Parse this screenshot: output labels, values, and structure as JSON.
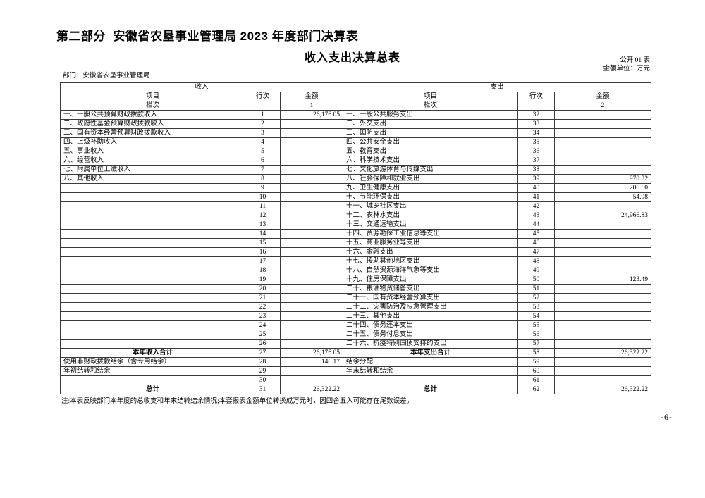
{
  "page": {
    "title": "第二部分  安徽省农垦事业管理局 2023 年度部门决算表",
    "subtitle": "收入支出决算总表",
    "table_code": "公开 01 表",
    "unit_label": "金额单位：万元",
    "dept_label": "部门：安徽省农垦事业管理局",
    "note": "注:本表反映部门本年度的总收支和年末结转结余情况;本套报表金额单位转换成万元时，因四舍五入可能存在尾数误差。",
    "page_number": "-6-",
    "ink_color": "#000000",
    "background_color": "#ffffff"
  },
  "table": {
    "income": {
      "section_title": "收入",
      "headers": {
        "item": "项目",
        "line": "行次",
        "amount": "金额"
      },
      "lanci": {
        "item": "栏次",
        "line": "",
        "amount": "1"
      },
      "rows": [
        {
          "item": "一、一般公共预算财政拨款收入",
          "line": "1",
          "amount": "26,176.05",
          "bold": false
        },
        {
          "item": "二、政府性基金预算财政拨款收入",
          "line": "2",
          "amount": "",
          "bold": false
        },
        {
          "item": "三、国有资本经营预算财政拨款收入",
          "line": "3",
          "amount": "",
          "bold": false
        },
        {
          "item": "四、上级补助收入",
          "line": "4",
          "amount": "",
          "bold": false
        },
        {
          "item": "五、事业收入",
          "line": "5",
          "amount": "",
          "bold": false
        },
        {
          "item": "六、经营收入",
          "line": "6",
          "amount": "",
          "bold": false
        },
        {
          "item": "七、附属单位上缴收入",
          "line": "7",
          "amount": "",
          "bold": false
        },
        {
          "item": "八、其他收入",
          "line": "8",
          "amount": "",
          "bold": false
        },
        {
          "item": "",
          "line": "9",
          "amount": "",
          "bold": false
        },
        {
          "item": "",
          "line": "10",
          "amount": "",
          "bold": false
        },
        {
          "item": "",
          "line": "11",
          "amount": "",
          "bold": false
        },
        {
          "item": "",
          "line": "12",
          "amount": "",
          "bold": false
        },
        {
          "item": "",
          "line": "13",
          "amount": "",
          "bold": false
        },
        {
          "item": "",
          "line": "14",
          "amount": "",
          "bold": false
        },
        {
          "item": "",
          "line": "15",
          "amount": "",
          "bold": false
        },
        {
          "item": "",
          "line": "16",
          "amount": "",
          "bold": false
        },
        {
          "item": "",
          "line": "17",
          "amount": "",
          "bold": false
        },
        {
          "item": "",
          "line": "18",
          "amount": "",
          "bold": false
        },
        {
          "item": "",
          "line": "19",
          "amount": "",
          "bold": false
        },
        {
          "item": "",
          "line": "20",
          "amount": "",
          "bold": false
        },
        {
          "item": "",
          "line": "21",
          "amount": "",
          "bold": false
        },
        {
          "item": "",
          "line": "22",
          "amount": "",
          "bold": false
        },
        {
          "item": "",
          "line": "23",
          "amount": "",
          "bold": false
        },
        {
          "item": "",
          "line": "24",
          "amount": "",
          "bold": false
        },
        {
          "item": "",
          "line": "25",
          "amount": "",
          "bold": false
        },
        {
          "item": "",
          "line": "26",
          "amount": "",
          "bold": false
        },
        {
          "item": "本年收入合计",
          "line": "27",
          "amount": "26,176.05",
          "bold": true
        },
        {
          "item": "使用非财政拨款结余（含专用结余）",
          "line": "28",
          "amount": "146.17",
          "bold": false
        },
        {
          "item": "年初结转和结余",
          "line": "29",
          "amount": "",
          "bold": false
        },
        {
          "item": "",
          "line": "30",
          "amount": "",
          "bold": false
        },
        {
          "item": "总计",
          "line": "31",
          "amount": "26,322.22",
          "bold": true
        }
      ]
    },
    "expense": {
      "section_title": "支出",
      "headers": {
        "item": "项目",
        "line": "行次",
        "amount": "金额"
      },
      "lanci": {
        "item": "栏次",
        "line": "",
        "amount": "2"
      },
      "rows": [
        {
          "item": "一、一般公共服务支出",
          "line": "32",
          "amount": "",
          "bold": false
        },
        {
          "item": "二、外交支出",
          "line": "33",
          "amount": "",
          "bold": false
        },
        {
          "item": "三、国防支出",
          "line": "34",
          "amount": "",
          "bold": false
        },
        {
          "item": "四、公共安全支出",
          "line": "35",
          "amount": "",
          "bold": false
        },
        {
          "item": "五、教育支出",
          "line": "36",
          "amount": "",
          "bold": false
        },
        {
          "item": "六、科学技术支出",
          "line": "37",
          "amount": "",
          "bold": false
        },
        {
          "item": "七、文化旅游体育与传媒支出",
          "line": "38",
          "amount": "",
          "bold": false
        },
        {
          "item": "八、社会保障和就业支出",
          "line": "39",
          "amount": "970.32",
          "bold": false
        },
        {
          "item": "九、卫生健康支出",
          "line": "40",
          "amount": "206.60",
          "bold": false
        },
        {
          "item": "十、节能环保支出",
          "line": "41",
          "amount": "54.98",
          "bold": false
        },
        {
          "item": "十一、城乡社区支出",
          "line": "42",
          "amount": "",
          "bold": false
        },
        {
          "item": "十二、农林水支出",
          "line": "43",
          "amount": "24,966.83",
          "bold": false
        },
        {
          "item": "十三、交通运输支出",
          "line": "44",
          "amount": "",
          "bold": false
        },
        {
          "item": "十四、资源勘探工业信息等支出",
          "line": "45",
          "amount": "",
          "bold": false
        },
        {
          "item": "十五、商业服务业等支出",
          "line": "46",
          "amount": "",
          "bold": false
        },
        {
          "item": "十六、金融支出",
          "line": "47",
          "amount": "",
          "bold": false
        },
        {
          "item": "十七、援助其他地区支出",
          "line": "48",
          "amount": "",
          "bold": false
        },
        {
          "item": "十八、自然资源海洋气象等支出",
          "line": "49",
          "amount": "",
          "bold": false
        },
        {
          "item": "十九、住房保障支出",
          "line": "50",
          "amount": "123.49",
          "bold": false
        },
        {
          "item": "二十、粮油物资储备支出",
          "line": "51",
          "amount": "",
          "bold": false
        },
        {
          "item": "二十一、国有资本经营预算支出",
          "line": "52",
          "amount": "",
          "bold": false
        },
        {
          "item": "二十二、灾害防治及应急管理支出",
          "line": "53",
          "amount": "",
          "bold": false
        },
        {
          "item": "二十三、其他支出",
          "line": "54",
          "amount": "",
          "bold": false
        },
        {
          "item": "二十四、债务还本支出",
          "line": "55",
          "amount": "",
          "bold": false
        },
        {
          "item": "二十五、债务付息支出",
          "line": "56",
          "amount": "",
          "bold": false
        },
        {
          "item": "二十六、抗疫特别国债安排的支出",
          "line": "57",
          "amount": "",
          "bold": false
        },
        {
          "item": "本年支出合计",
          "line": "58",
          "amount": "26,322.22",
          "bold": true
        },
        {
          "item": "结余分配",
          "line": "59",
          "amount": "",
          "bold": false
        },
        {
          "item": "年末结转和结余",
          "line": "60",
          "amount": "",
          "bold": false
        },
        {
          "item": "",
          "line": "61",
          "amount": "",
          "bold": false
        },
        {
          "item": "总计",
          "line": "62",
          "amount": "26,322.22",
          "bold": true
        }
      ]
    }
  }
}
